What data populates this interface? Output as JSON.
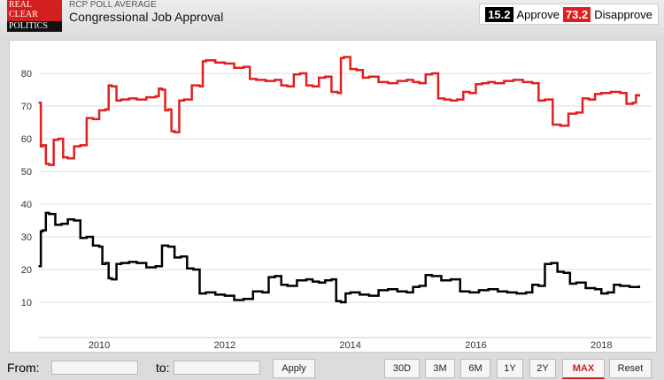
{
  "header": {
    "logo": "REAL CLEAR POLITICS",
    "logo_lines": [
      "REAL",
      "CLEAR",
      "POLITICS"
    ],
    "kicker": "RCP POLL AVERAGE",
    "title": "Congressional Job Approval"
  },
  "legend": [
    {
      "value": "15.2",
      "label": "Approve",
      "color": "#000000"
    },
    {
      "value": "73.2",
      "label": "Disapprove",
      "color": "#e02020"
    }
  ],
  "footer": {
    "from_label": "From:",
    "from_value": "",
    "to_label": "to:",
    "to_value": "",
    "apply": "Apply",
    "ranges": [
      "30D",
      "3M",
      "6M",
      "1Y",
      "2Y",
      "MAX"
    ],
    "active_range": "MAX",
    "reset": "Reset"
  },
  "chart_data": {
    "type": "line",
    "title": "Congressional Job Approval",
    "xlabel": "",
    "ylabel": "",
    "grid": true,
    "legend_position": "top-right",
    "xlim": [
      2009.04,
      2018.8
    ],
    "ylim": [
      0,
      90
    ],
    "xticks": [
      2010,
      2012,
      2014,
      2016,
      2018
    ],
    "yticks": [
      10,
      20,
      30,
      40,
      50,
      60,
      70,
      80
    ],
    "series": [
      {
        "name": "Disapprove",
        "color": "#e02020",
        "x": [
          2009.04,
          2009.1,
          2009.2,
          2009.35,
          2009.5,
          2009.7,
          2009.9,
          2010.1,
          2010.2,
          2010.35,
          2010.6,
          2010.9,
          2011.0,
          2011.1,
          2011.2,
          2011.35,
          2011.6,
          2011.7,
          2012.0,
          2012.3,
          2012.5,
          2012.8,
          2013.0,
          2013.2,
          2013.4,
          2013.6,
          2013.8,
          2013.9,
          2014.1,
          2014.3,
          2014.6,
          2014.9,
          2015.1,
          2015.3,
          2015.5,
          2015.7,
          2015.9,
          2016.1,
          2016.3,
          2016.6,
          2016.9,
          2017.1,
          2017.35,
          2017.6,
          2017.8,
          2018.0,
          2018.3,
          2018.5,
          2018.6
        ],
        "values": [
          71,
          58,
          52,
          60,
          54,
          58,
          66,
          69,
          76,
          72,
          72,
          73,
          75,
          69,
          62,
          72,
          76,
          84,
          83,
          82,
          78,
          78,
          76,
          80,
          76,
          79,
          74,
          85,
          81,
          79,
          77,
          78,
          77,
          80,
          72,
          72,
          74,
          77,
          77,
          78,
          77,
          72,
          64,
          68,
          72,
          74,
          74,
          71,
          73
        ]
      },
      {
        "name": "Approve",
        "color": "#000000",
        "x": [
          2009.04,
          2009.1,
          2009.2,
          2009.4,
          2009.6,
          2009.8,
          2010.0,
          2010.1,
          2010.2,
          2010.35,
          2010.6,
          2010.9,
          2011.1,
          2011.3,
          2011.5,
          2011.7,
          2012.0,
          2012.3,
          2012.6,
          2012.8,
          2013.0,
          2013.3,
          2013.5,
          2013.7,
          2013.85,
          2014.0,
          2014.3,
          2014.6,
          2014.9,
          2015.1,
          2015.3,
          2015.6,
          2015.9,
          2016.2,
          2016.5,
          2016.8,
          2017.0,
          2017.2,
          2017.4,
          2017.6,
          2017.9,
          2018.1,
          2018.3,
          2018.6
        ],
        "values": [
          21,
          32,
          37,
          34,
          35,
          30,
          27,
          22,
          17,
          22,
          22,
          21,
          27,
          24,
          20,
          13,
          12,
          11,
          13,
          18,
          15,
          17,
          16,
          17,
          10,
          13,
          12,
          14,
          13,
          15,
          18,
          17,
          13,
          14,
          13,
          13,
          15,
          22,
          19,
          16,
          14,
          13,
          15,
          15
        ]
      }
    ]
  }
}
